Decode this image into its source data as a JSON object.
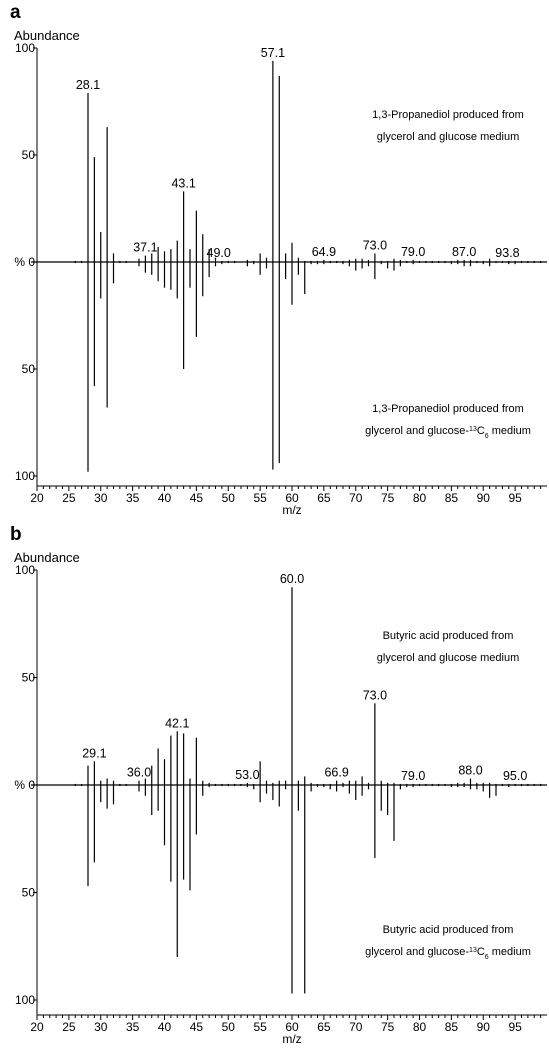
{
  "chart_data": [
    {
      "type": "bar",
      "panel": "a",
      "ylabel": "Abundance",
      "xlabel": "m/z",
      "xlim": [
        20,
        100
      ],
      "ylim": [
        -100,
        100
      ],
      "xticks": [
        20,
        25,
        30,
        35,
        40,
        45,
        50,
        55,
        60,
        65,
        70,
        75,
        80,
        85,
        90,
        95
      ],
      "yticks_upper": [
        "100",
        "50",
        "% 0"
      ],
      "yticks_lower": [
        "50",
        "100"
      ],
      "top_annotation": [
        "1,3-Propanediol produced from",
        "glycerol and glucose medium"
      ],
      "bottom_annotation": [
        "1,3-Propanediol produced from",
        "glycerol and glucose-",
        "13",
        "C",
        "6",
        " medium"
      ],
      "series": [
        {
          "name": "",
          "x": [
            26,
            27,
            28,
            29,
            30,
            31,
            32,
            33,
            34,
            36,
            37,
            38,
            39,
            40,
            41,
            42,
            43,
            44,
            45,
            46,
            47,
            48,
            49,
            50,
            51,
            53,
            54,
            55,
            56,
            57,
            58,
            59,
            60,
            61,
            62,
            63,
            64,
            65,
            66,
            67,
            68,
            69,
            70,
            71,
            72,
            73,
            74,
            75,
            76,
            77,
            78,
            79,
            80,
            81,
            82,
            83,
            84,
            85,
            86,
            87,
            88,
            89,
            90,
            91,
            92,
            93,
            94,
            95,
            96,
            97,
            98,
            99
          ],
          "values": [
            0.5,
            0.5,
            79,
            49,
            14,
            63,
            4,
            0.5,
            0.5,
            1.5,
            3,
            4,
            7,
            5,
            6,
            10,
            33,
            6,
            24,
            13,
            6,
            2,
            0.5,
            0.5,
            0.5,
            1,
            0.5,
            4,
            2,
            94,
            87,
            4,
            9,
            2,
            0.5,
            0.5,
            0.5,
            1,
            0.5,
            0.5,
            0.5,
            1,
            1.5,
            1.5,
            1,
            4,
            0.5,
            0.5,
            1.5,
            1,
            0.5,
            1,
            0.5,
            0.5,
            0.5,
            0.5,
            0.5,
            0.5,
            1,
            1,
            1,
            0.5,
            0.5,
            1.5,
            0.5,
            0.5,
            0.5,
            0.5,
            0.5,
            0.5,
            0.5,
            0.5
          ]
        },
        {
          "name": "",
          "x": [
            26,
            27,
            28,
            29,
            30,
            31,
            32,
            33,
            34,
            36,
            37,
            38,
            39,
            40,
            41,
            42,
            43,
            44,
            45,
            46,
            47,
            48,
            49,
            50,
            51,
            53,
            54,
            55,
            56,
            57,
            58,
            59,
            60,
            61,
            62,
            63,
            64,
            65,
            66,
            67,
            68,
            69,
            70,
            71,
            72,
            73,
            74,
            75,
            76,
            77,
            78,
            79,
            80,
            81,
            82,
            83,
            84,
            85,
            86,
            87,
            88,
            89,
            90,
            91,
            92,
            93,
            94,
            95,
            96,
            97,
            98,
            99
          ],
          "values": [
            -0.5,
            -0.5,
            -98,
            -58,
            -17,
            -68,
            -10,
            -0.5,
            -0.5,
            -2,
            -5,
            -6,
            -9,
            -12,
            -13,
            -17,
            -50,
            -12,
            -35,
            -16,
            -7,
            -2,
            -1,
            -0.5,
            -0.5,
            -2,
            -1,
            -6,
            -3,
            -97,
            -94,
            -8,
            -20,
            -6,
            -15,
            -1,
            -1,
            -1,
            -0.5,
            -0.5,
            -1,
            -2,
            -4,
            -3,
            -2,
            -8,
            -1,
            -3,
            -4,
            -2,
            -0.5,
            -1,
            -0.5,
            -0.5,
            -0.5,
            -0.5,
            -0.5,
            -1,
            -1,
            -2,
            -2,
            -0.5,
            -1,
            -2,
            -0.5,
            -0.5,
            -1,
            -1,
            -0.5,
            -0.5,
            -0.5,
            -0.5
          ]
        }
      ],
      "peak_labels": [
        {
          "x": 28,
          "text": "28.1"
        },
        {
          "x": 37,
          "text": "37.1"
        },
        {
          "x": 43,
          "text": "43.1"
        },
        {
          "x": 48.5,
          "text": "49.0"
        },
        {
          "x": 57,
          "text": "57.1"
        },
        {
          "x": 65,
          "text": "64.9"
        },
        {
          "x": 73,
          "text": "73.0"
        },
        {
          "x": 79,
          "text": "79.0"
        },
        {
          "x": 87,
          "text": "87.0"
        },
        {
          "x": 93.8,
          "text": "93.8"
        }
      ]
    },
    {
      "type": "bar",
      "panel": "b",
      "ylabel": "Abundance",
      "xlabel": "m/z",
      "xlim": [
        20,
        100
      ],
      "ylim": [
        -100,
        100
      ],
      "xticks": [
        20,
        25,
        30,
        35,
        40,
        45,
        50,
        55,
        60,
        65,
        70,
        75,
        80,
        85,
        90,
        95
      ],
      "yticks_upper": [
        "100",
        "50",
        "% 0"
      ],
      "yticks_lower": [
        "50",
        "100"
      ],
      "top_annotation": [
        "Butyric acid produced from",
        "glycerol and glucose medium"
      ],
      "bottom_annotation": [
        "Butyric acid produced from",
        "glycerol and glucose-",
        "13",
        "C",
        "6",
        " medium"
      ],
      "series": [
        {
          "name": "",
          "x": [
            26,
            27,
            28,
            29,
            30,
            31,
            32,
            33,
            34,
            36,
            37,
            38,
            39,
            40,
            41,
            42,
            43,
            44,
            45,
            46,
            47,
            48,
            49,
            50,
            51,
            52,
            53,
            54,
            55,
            56,
            57,
            58,
            59,
            60,
            61,
            62,
            63,
            64,
            65,
            66,
            67,
            68,
            69,
            70,
            71,
            72,
            73,
            74,
            75,
            76,
            77,
            78,
            79,
            80,
            81,
            82,
            83,
            84,
            85,
            86,
            87,
            88,
            89,
            90,
            91,
            92,
            93,
            94,
            95,
            96,
            97,
            98,
            99
          ],
          "values": [
            0.5,
            0.5,
            9,
            11,
            2,
            3,
            2,
            0.5,
            0.5,
            2,
            3,
            9,
            17,
            12,
            23,
            25,
            24,
            3,
            22,
            2,
            1,
            0.5,
            0.5,
            0.5,
            0.5,
            0.5,
            1,
            0.5,
            11,
            2,
            1,
            2,
            2,
            92,
            2,
            4,
            1,
            0.5,
            0.5,
            0.5,
            2,
            1,
            2,
            2,
            4,
            1,
            38,
            2,
            1,
            1,
            0.5,
            0.5,
            0.5,
            0.5,
            0.5,
            0.5,
            0.5,
            0.5,
            0.5,
            1,
            1,
            3,
            1,
            1,
            1,
            0.5,
            0.5,
            0.5,
            0.5,
            0.5,
            0.5,
            0.5,
            0.5
          ]
        },
        {
          "name": "",
          "x": [
            26,
            27,
            28,
            29,
            30,
            31,
            32,
            33,
            34,
            36,
            37,
            38,
            39,
            40,
            41,
            42,
            43,
            44,
            45,
            46,
            47,
            48,
            49,
            50,
            51,
            52,
            53,
            54,
            55,
            56,
            57,
            58,
            59,
            60,
            61,
            62,
            63,
            64,
            65,
            66,
            67,
            68,
            69,
            70,
            71,
            72,
            73,
            74,
            75,
            76,
            77,
            78,
            79,
            80,
            81,
            82,
            83,
            84,
            85,
            86,
            87,
            88,
            89,
            90,
            91,
            92,
            93,
            94,
            95,
            96,
            97,
            98,
            99
          ],
          "values": [
            -0.5,
            -0.5,
            -47,
            -36,
            -8,
            -11,
            -9,
            -0.5,
            -0.5,
            -3,
            -5,
            -14,
            -12,
            -28,
            -45,
            -80,
            -44,
            -49,
            -23,
            -5,
            -1,
            -0.5,
            -0.5,
            -0.5,
            -0.5,
            -0.5,
            -1,
            -2,
            -8,
            -4,
            -7,
            -10,
            -2,
            -97,
            -12,
            -97,
            -3,
            -1,
            -1,
            -2,
            -3,
            -1,
            -4,
            -7,
            -5,
            -2,
            -34,
            -12,
            -14,
            -26,
            -2,
            -1,
            -1,
            -0.5,
            -0.5,
            -0.5,
            -0.5,
            -0.5,
            -1,
            -1,
            -1,
            -2,
            -2,
            -3,
            -6,
            -5,
            -0.5,
            -1,
            -0.5,
            -0.5,
            -0.5,
            -0.5,
            -0.5
          ]
        }
      ],
      "peak_labels": [
        {
          "x": 29,
          "text": "29.1"
        },
        {
          "x": 36,
          "text": "36.0"
        },
        {
          "x": 42,
          "text": "42.1"
        },
        {
          "x": 53,
          "text": "53.0"
        },
        {
          "x": 60,
          "text": "60.0"
        },
        {
          "x": 67,
          "text": "66.9"
        },
        {
          "x": 73,
          "text": "73.0"
        },
        {
          "x": 79,
          "text": "79.0"
        },
        {
          "x": 88,
          "text": "88.0"
        },
        {
          "x": 95,
          "text": "95.0"
        }
      ]
    }
  ],
  "panels": {
    "a": {
      "letter": "a"
    },
    "b": {
      "letter": "b"
    }
  }
}
